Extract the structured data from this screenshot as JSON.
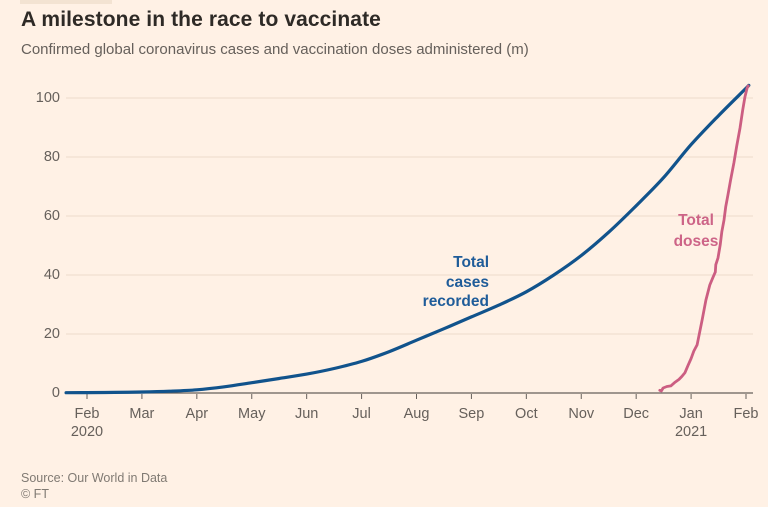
{
  "header": {
    "title": "A milestone in the race to vaccinate",
    "subtitle": "Confirmed global coronavirus cases and vaccination doses administered (m)"
  },
  "colors": {
    "background": "#fff1e5",
    "title_text": "#2e2a26",
    "muted_text": "#66605b",
    "grid": "#eddccb",
    "axis": "#66605b",
    "cases_line": "#11538c",
    "doses_line": "#cc5e82"
  },
  "chart_data": {
    "type": "line",
    "title": "A milestone in the race to vaccinate",
    "subtitle": "Confirmed global coronavirus cases and vaccination doses administered (m)",
    "unit": "m",
    "ylim": [
      0,
      105
    ],
    "y_ticks": [
      0,
      20,
      40,
      60,
      80,
      100
    ],
    "x_tick_labels": [
      "Feb",
      "Mar",
      "Apr",
      "May",
      "Jun",
      "Jul",
      "Aug",
      "Sep",
      "Oct",
      "Nov",
      "Dec",
      "Jan",
      "Feb"
    ],
    "x_year_labels": [
      {
        "index": 0,
        "label": "2020"
      },
      {
        "index": 11,
        "label": "2021"
      }
    ],
    "grid": true,
    "legend_position": "inline-annotations",
    "series": [
      {
        "name": "Total cases recorded",
        "color": "#11538c",
        "smooth": true,
        "points": [
          [
            -0.38,
            0.1
          ],
          [
            0,
            0.15
          ],
          [
            0.5,
            0.2
          ],
          [
            1,
            0.35
          ],
          [
            1.5,
            0.6
          ],
          [
            2,
            1.1
          ],
          [
            2.5,
            2.1
          ],
          [
            3,
            3.5
          ],
          [
            3.5,
            4.9
          ],
          [
            4,
            6.4
          ],
          [
            4.5,
            8.3
          ],
          [
            5,
            10.7
          ],
          [
            5.5,
            14
          ],
          [
            6,
            17.9
          ],
          [
            6.5,
            21.8
          ],
          [
            7,
            25.8
          ],
          [
            7.5,
            29.8
          ],
          [
            8,
            34.3
          ],
          [
            8.5,
            40
          ],
          [
            9,
            46.6
          ],
          [
            9.5,
            54.5
          ],
          [
            10,
            63.5
          ],
          [
            10.5,
            73
          ],
          [
            11,
            84.2
          ],
          [
            11.5,
            94
          ],
          [
            12,
            103.3
          ],
          [
            12.04,
            104.1
          ]
        ]
      },
      {
        "name": "Total doses",
        "color": "#cc5e82",
        "smooth": false,
        "points": [
          [
            10.43,
            0.9
          ],
          [
            10.46,
            0.7
          ],
          [
            10.49,
            1.7
          ],
          [
            10.56,
            2.2
          ],
          [
            10.63,
            2.4
          ],
          [
            10.71,
            3.7
          ],
          [
            10.78,
            4.6
          ],
          [
            10.83,
            5.6
          ],
          [
            10.89,
            6.9
          ],
          [
            10.94,
            9.2
          ],
          [
            11,
            11.7
          ],
          [
            11.05,
            14.2
          ],
          [
            11.11,
            16.3
          ],
          [
            11.2,
            24.7
          ],
          [
            11.27,
            31.5
          ],
          [
            11.34,
            36.6
          ],
          [
            11.4,
            39.3
          ],
          [
            11.44,
            41
          ],
          [
            11.45,
            43.5
          ],
          [
            11.49,
            45.8
          ],
          [
            11.53,
            50.2
          ],
          [
            11.56,
            54.6
          ],
          [
            11.6,
            58.6
          ],
          [
            11.63,
            63.1
          ],
          [
            11.67,
            67.1
          ],
          [
            11.72,
            72.2
          ],
          [
            11.78,
            78
          ],
          [
            11.83,
            83.7
          ],
          [
            11.89,
            89.8
          ],
          [
            11.94,
            95.9
          ],
          [
            11.98,
            100.3
          ],
          [
            12.02,
            103.4
          ],
          [
            12.04,
            104.1
          ]
        ]
      }
    ]
  },
  "annotations": {
    "cases": [
      "Total",
      "cases",
      "recorded"
    ],
    "doses": [
      "Total",
      "doses"
    ]
  },
  "footer": {
    "source": "Source: Our World in Data",
    "credit": "© FT"
  }
}
